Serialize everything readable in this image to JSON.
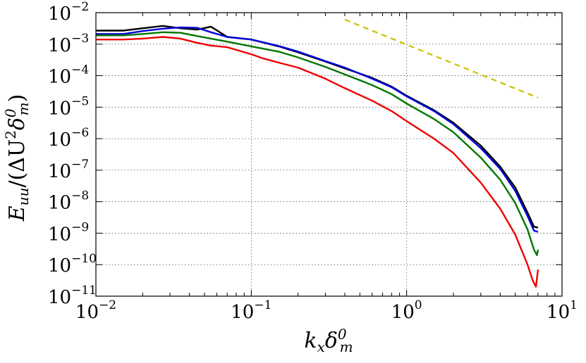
{
  "chart_data": {
    "type": "line",
    "title": "",
    "xlabel": "k_x δ_m^0",
    "ylabel": "E_uu / (ΔU^2 δ_m^0)",
    "xscale": "log",
    "yscale": "log",
    "xlim": [
      0.01,
      10
    ],
    "ylim": [
      1e-11,
      0.01
    ],
    "grid": true,
    "x_ticks": [
      {
        "base": "10",
        "exp": "−2",
        "value": 0.01
      },
      {
        "base": "10",
        "exp": "−1",
        "value": 0.1
      },
      {
        "base": "10",
        "exp": "0",
        "value": 1
      },
      {
        "base": "10",
        "exp": "1",
        "value": 10
      }
    ],
    "y_ticks": [
      {
        "base": "10",
        "exp": "−11",
        "value": 1e-11
      },
      {
        "base": "10",
        "exp": "−10",
        "value": 1e-10
      },
      {
        "base": "10",
        "exp": "−9",
        "value": 1e-09
      },
      {
        "base": "10",
        "exp": "−8",
        "value": 1e-08
      },
      {
        "base": "10",
        "exp": "−7",
        "value": 1e-07
      },
      {
        "base": "10",
        "exp": "−6",
        "value": 1e-06
      },
      {
        "base": "10",
        "exp": "−5",
        "value": 1e-05
      },
      {
        "base": "10",
        "exp": "−4",
        "value": 0.0001
      },
      {
        "base": "10",
        "exp": "−3",
        "value": 0.001
      },
      {
        "base": "10",
        "exp": "−2",
        "value": 0.01
      }
    ],
    "series": [
      {
        "name": "black",
        "color": "#000000",
        "dash": false,
        "points": [
          [
            0.01,
            0.0027
          ],
          [
            0.015,
            0.0027
          ],
          [
            0.02,
            0.0032
          ],
          [
            0.027,
            0.0038
          ],
          [
            0.035,
            0.0032
          ],
          [
            0.045,
            0.0029
          ],
          [
            0.055,
            0.0036
          ],
          [
            0.07,
            0.0017
          ],
          [
            0.1,
            0.0014
          ],
          [
            0.15,
            0.00085
          ],
          [
            0.2,
            0.00055
          ],
          [
            0.3,
            0.00028
          ],
          [
            0.4,
            0.00017
          ],
          [
            0.6,
            8.5e-05
          ],
          [
            0.8,
            4.5e-05
          ],
          [
            1.0,
            2.3e-05
          ],
          [
            1.5,
            8e-06
          ],
          [
            2.0,
            3.2e-06
          ],
          [
            3.0,
            6e-07
          ],
          [
            4.0,
            1.3e-07
          ],
          [
            5.0,
            2.8e-08
          ],
          [
            6.0,
            4.5e-09
          ],
          [
            6.6,
            1.6e-09
          ],
          [
            7.0,
            1.5e-09
          ]
        ]
      },
      {
        "name": "blue",
        "color": "#0000dd",
        "dash": false,
        "points": [
          [
            0.01,
            0.0021
          ],
          [
            0.015,
            0.0021
          ],
          [
            0.02,
            0.0026
          ],
          [
            0.027,
            0.0031
          ],
          [
            0.035,
            0.0034
          ],
          [
            0.045,
            0.0033
          ],
          [
            0.055,
            0.0024
          ],
          [
            0.07,
            0.0017
          ],
          [
            0.1,
            0.0014
          ],
          [
            0.15,
            0.00088
          ],
          [
            0.2,
            0.00058
          ],
          [
            0.3,
            0.00029
          ],
          [
            0.4,
            0.00018
          ],
          [
            0.6,
            8e-05
          ],
          [
            0.8,
            4.3e-05
          ],
          [
            1.0,
            2.2e-05
          ],
          [
            1.5,
            7.5e-06
          ],
          [
            2.0,
            2.9e-06
          ],
          [
            3.0,
            5e-07
          ],
          [
            4.0,
            1.1e-07
          ],
          [
            5.0,
            2.2e-08
          ],
          [
            6.0,
            3.5e-09
          ],
          [
            6.6,
            1.2e-09
          ],
          [
            7.0,
            1.1e-09
          ]
        ]
      },
      {
        "name": "green",
        "color": "#007700",
        "dash": false,
        "points": [
          [
            0.01,
            0.0019
          ],
          [
            0.015,
            0.0019
          ],
          [
            0.02,
            0.0021
          ],
          [
            0.027,
            0.0024
          ],
          [
            0.035,
            0.0023
          ],
          [
            0.045,
            0.0018
          ],
          [
            0.055,
            0.0015
          ],
          [
            0.07,
            0.0012
          ],
          [
            0.1,
            0.00085
          ],
          [
            0.15,
            0.00058
          ],
          [
            0.2,
            0.00038
          ],
          [
            0.3,
            0.00019
          ],
          [
            0.4,
            0.00011
          ],
          [
            0.6,
            5e-05
          ],
          [
            0.8,
            2.6e-05
          ],
          [
            1.0,
            1.3e-05
          ],
          [
            1.5,
            4.2e-06
          ],
          [
            2.0,
            1.6e-06
          ],
          [
            3.0,
            2.5e-07
          ],
          [
            4.0,
            5e-08
          ],
          [
            5.0,
            9e-09
          ],
          [
            6.0,
            1.3e-09
          ],
          [
            6.6,
            3e-10
          ],
          [
            6.9,
            2e-10
          ],
          [
            7.0,
            3e-10
          ]
        ]
      },
      {
        "name": "red",
        "color": "#ee0000",
        "dash": false,
        "points": [
          [
            0.01,
            0.0014
          ],
          [
            0.015,
            0.0014
          ],
          [
            0.02,
            0.0015
          ],
          [
            0.027,
            0.0017
          ],
          [
            0.035,
            0.0015
          ],
          [
            0.045,
            0.0011
          ],
          [
            0.055,
            0.0009
          ],
          [
            0.07,
            0.0008
          ],
          [
            0.1,
            0.00048
          ],
          [
            0.12,
            0.00035
          ],
          [
            0.15,
            0.00026
          ],
          [
            0.2,
            0.00018
          ],
          [
            0.3,
            8e-05
          ],
          [
            0.4,
            4e-05
          ],
          [
            0.6,
            1.6e-05
          ],
          [
            0.8,
            7.5e-06
          ],
          [
            1.0,
            3.6e-06
          ],
          [
            1.5,
            1e-06
          ],
          [
            2.0,
            3.5e-07
          ],
          [
            3.0,
            4e-08
          ],
          [
            4.0,
            6e-09
          ],
          [
            5.0,
            9e-10
          ],
          [
            6.0,
            1e-10
          ],
          [
            6.5,
            3e-11
          ],
          [
            6.8,
            2e-11
          ],
          [
            7.0,
            7e-11
          ]
        ]
      },
      {
        "name": "reference slope",
        "color": "#c8c000",
        "dash": true,
        "points": [
          [
            0.4,
            0.006
          ],
          [
            7.0,
            2e-05
          ]
        ]
      }
    ]
  }
}
